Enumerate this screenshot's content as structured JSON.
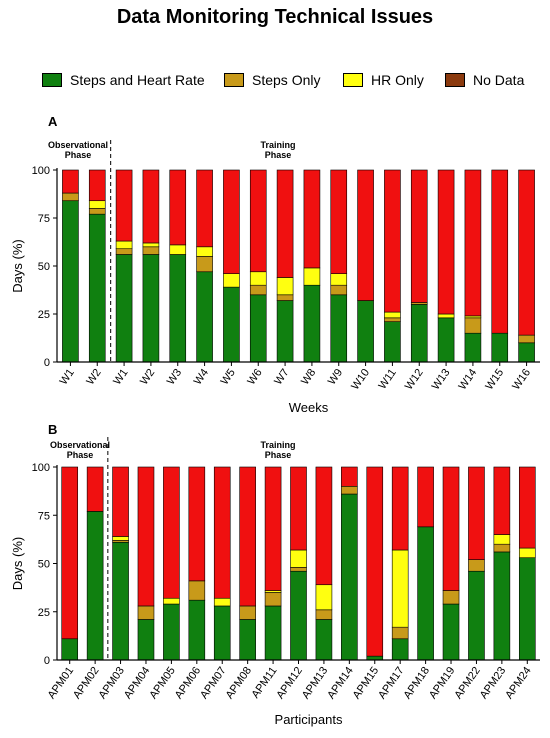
{
  "title": "Data Monitoring Technical Issues",
  "legend": [
    {
      "name": "Steps and Heart Rate",
      "color": "#108010"
    },
    {
      "name": "Steps Only",
      "color": "#c89a1a"
    },
    {
      "name": "HR Only",
      "color": "#ffff10"
    },
    {
      "name": "No Data",
      "color": "#8b3a0e"
    }
  ],
  "colors": {
    "steps_hr": "#108010",
    "steps_only": "#c89a1a",
    "hr_only": "#ffff10",
    "no_data_dark": "#8b3a0e",
    "no_data_red": "#f01010"
  },
  "chart_data": [
    {
      "type": "bar",
      "stacked": true,
      "panel": "A",
      "phases": [
        "Observational Phase",
        "Training Phase"
      ],
      "xlabel": "Weeks",
      "ylabel": "Days (%)",
      "ylim": [
        0,
        100
      ],
      "yticks": [
        0,
        25,
        50,
        75,
        100
      ],
      "categories": [
        "W1",
        "W2",
        "W1",
        "W2",
        "W3",
        "W4",
        "W5",
        "W6",
        "W7",
        "W8",
        "W9",
        "W10",
        "W11",
        "W12",
        "W13",
        "W14",
        "W15",
        "W16"
      ],
      "series": [
        {
          "name": "Steps and Heart Rate",
          "values": [
            84,
            77,
            56,
            56,
            56,
            47,
            39,
            35,
            32,
            40,
            35,
            32,
            21,
            30,
            23,
            15,
            15,
            10
          ]
        },
        {
          "name": "Steps Only",
          "values": [
            4,
            3,
            3,
            4,
            0,
            8,
            0,
            5,
            3,
            0,
            5,
            0,
            2,
            1,
            0,
            8,
            0,
            4
          ]
        },
        {
          "name": "HR Only",
          "values": [
            0,
            4,
            4,
            2,
            5,
            5,
            7,
            7,
            9,
            9,
            6,
            0,
            3,
            0,
            2,
            1,
            0,
            0
          ]
        },
        {
          "name": "No Data",
          "values": [
            12,
            16,
            37,
            38,
            39,
            40,
            54,
            53,
            56,
            51,
            54,
            68,
            74,
            69,
            75,
            76,
            85,
            86
          ]
        }
      ]
    },
    {
      "type": "bar",
      "stacked": true,
      "panel": "B",
      "phases": [
        "Observational Phase",
        "Training Phase"
      ],
      "xlabel": "Participants",
      "ylabel": "Days (%)",
      "ylim": [
        0,
        100
      ],
      "yticks": [
        0,
        25,
        50,
        75,
        100
      ],
      "categories": [
        "APM01",
        "APM02",
        "APM03",
        "APM04",
        "APM05",
        "APM06",
        "APM07",
        "APM08",
        "APM11",
        "APM12",
        "APM13",
        "APM14",
        "APM15",
        "APM17",
        "APM18",
        "APM19",
        "APM22",
        "APM23",
        "APM24"
      ],
      "series": [
        {
          "name": "Steps and Heart Rate",
          "values": [
            11,
            77,
            61,
            21,
            29,
            31,
            28,
            21,
            28,
            46,
            21,
            86,
            2,
            11,
            69,
            29,
            46,
            56,
            53
          ]
        },
        {
          "name": "Steps Only",
          "values": [
            0,
            0,
            1,
            7,
            0,
            10,
            0,
            7,
            7,
            2,
            5,
            4,
            0,
            6,
            0,
            7,
            6,
            4,
            0
          ]
        },
        {
          "name": "HR Only",
          "values": [
            0,
            0,
            2,
            0,
            3,
            0,
            4,
            0,
            1,
            9,
            13,
            0,
            0,
            40,
            0,
            0,
            0,
            5,
            5
          ]
        },
        {
          "name": "No Data",
          "values": [
            89,
            23,
            36,
            72,
            68,
            59,
            68,
            72,
            64,
            43,
            61,
            10,
            98,
            43,
            31,
            64,
            48,
            35,
            42
          ]
        }
      ]
    }
  ]
}
